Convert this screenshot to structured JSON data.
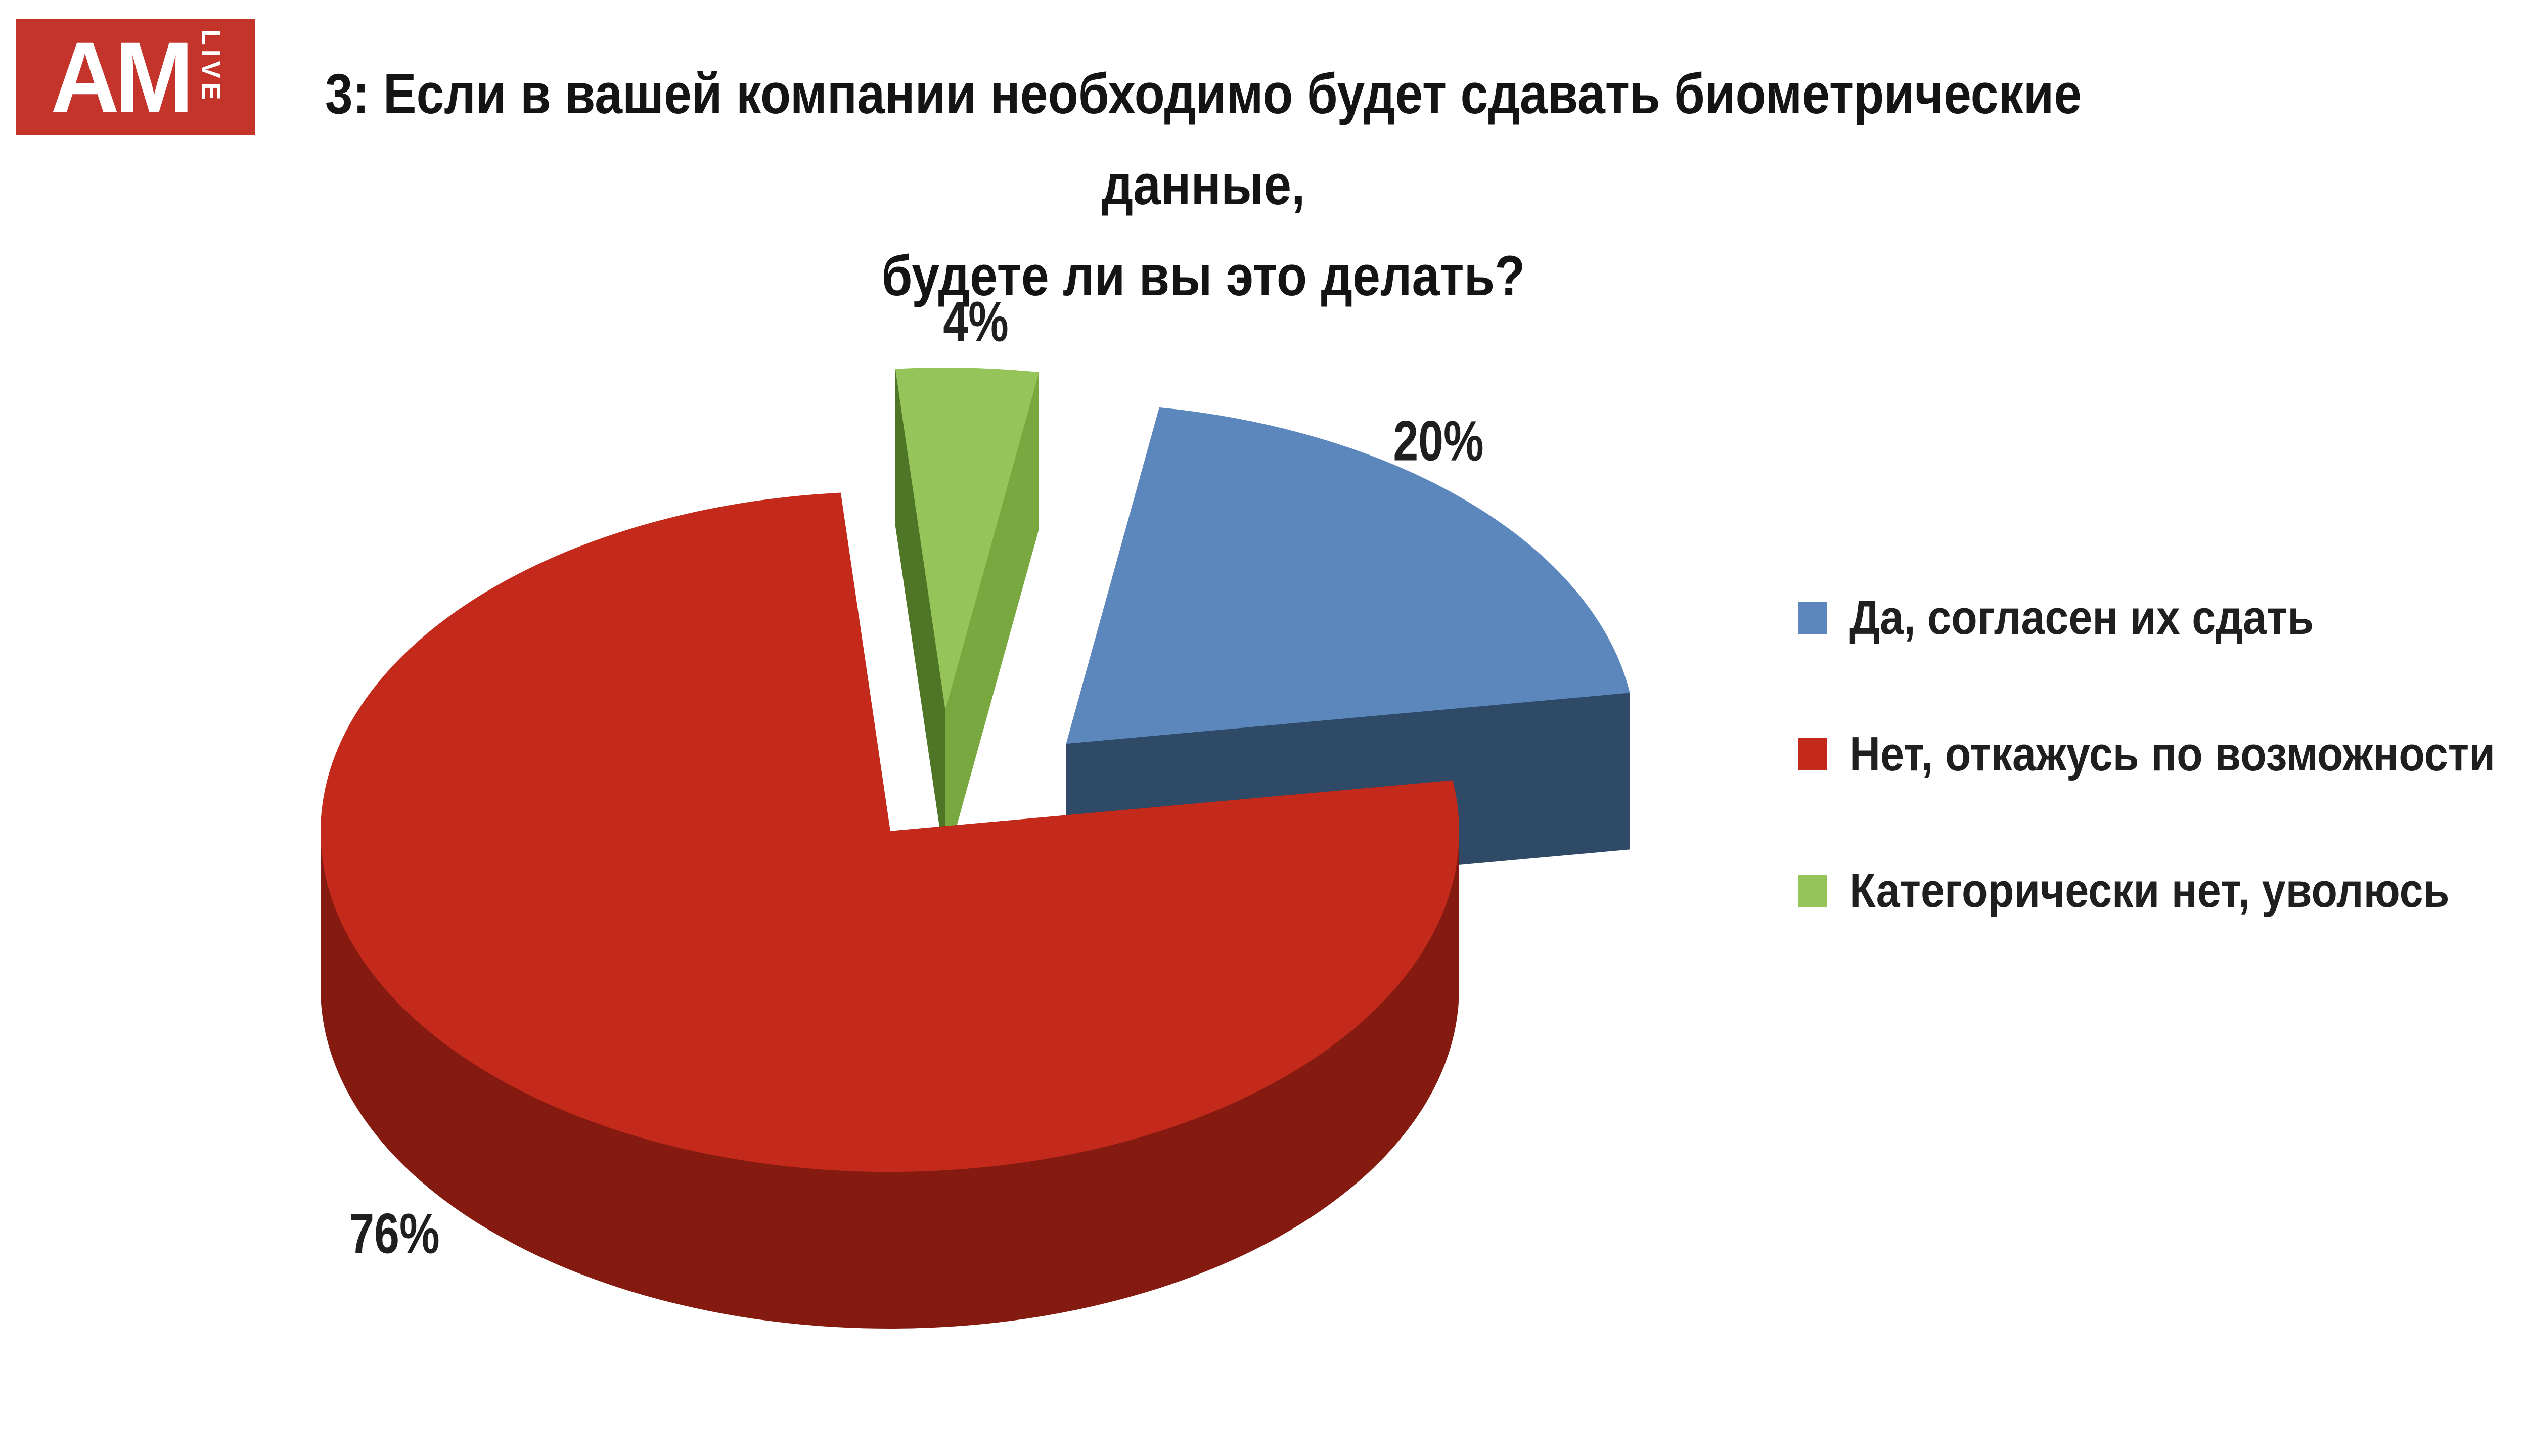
{
  "logo": {
    "text": "AM",
    "sub": "LIVE",
    "bg_color": "#c5342a"
  },
  "title": {
    "line1": "3: Если в вашей компании необходимо будет сдавать биометрические данные,",
    "line2": "будете ли вы это делать?"
  },
  "chart_data": {
    "type": "pie",
    "style": "3d-exploded",
    "title": "3: Если в вашей компании необходимо будет сдавать биометрические данные, будете ли вы это делать?",
    "unit": "%",
    "legend_position": "right",
    "slices": [
      {
        "label": "Да, согласен их сдать",
        "value": 20,
        "color": "#5b87bd",
        "side_color": "#2e4a66",
        "exploded": true,
        "data_label": "20%"
      },
      {
        "label": "Нет, откажусь по возможности",
        "value": 76,
        "color": "#c32a1b",
        "side_color": "#851b10",
        "exploded": false,
        "data_label": "76%"
      },
      {
        "label": "Категорически нет, уволюсь",
        "value": 4,
        "color": "#94c45a",
        "side_color": "#4f7527",
        "exploded": true,
        "data_label": "4%"
      }
    ]
  }
}
